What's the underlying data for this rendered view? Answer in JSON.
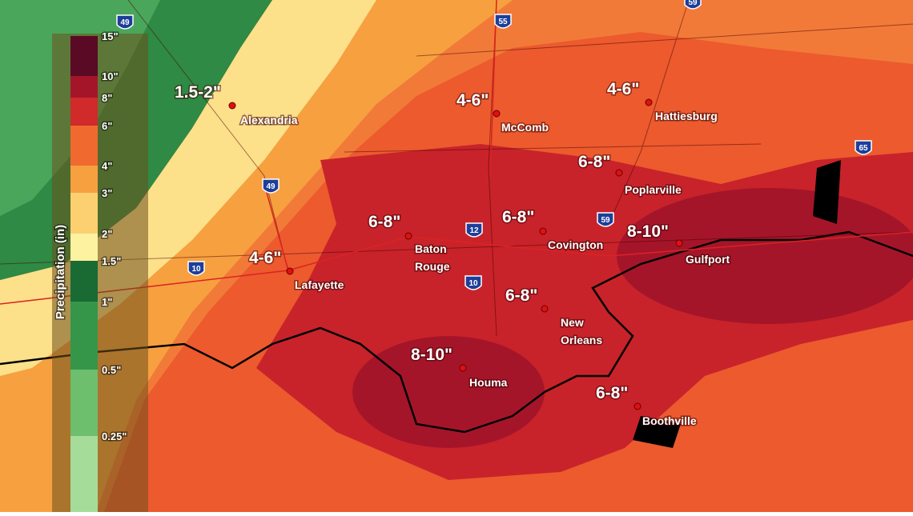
{
  "legend": {
    "title": "Precipitation (in)",
    "ticks": [
      "15\"",
      "10\"",
      "8\"",
      "6\"",
      "4\"",
      "3\"",
      "2\"",
      "1.5\"",
      "1\"",
      "0.5\"",
      "0.25\""
    ],
    "colors": [
      "#5a0a24",
      "#a5152a",
      "#d02a2a",
      "#f06a30",
      "#f7a040",
      "#fcd070",
      "#fdf2a0",
      "#1a6a34",
      "#35964a",
      "#6dbe6d",
      "#a5dc9a"
    ]
  },
  "cities": [
    {
      "name": [
        "Alexandria"
      ],
      "amount": "1.5-2\""
    },
    {
      "name": [
        "McComb"
      ],
      "amount": "4-6\""
    },
    {
      "name": [
        "Hattiesburg"
      ],
      "amount": "4-6\""
    },
    {
      "name": [
        "Poplarville"
      ],
      "amount": "6-8\""
    },
    {
      "name": [
        "Baton",
        "Rouge"
      ],
      "amount": "6-8\""
    },
    {
      "name": [
        "Covington"
      ],
      "amount": "6-8\""
    },
    {
      "name": [
        "Gulfport"
      ],
      "amount": "8-10\""
    },
    {
      "name": [
        "Lafayette"
      ],
      "amount": "4-6\""
    },
    {
      "name": [
        "New",
        "Orleans"
      ],
      "amount": "6-8\""
    },
    {
      "name": [
        "Houma"
      ],
      "amount": "8-10\""
    },
    {
      "name": [
        "Boothville"
      ],
      "amount": "6-8\""
    }
  ],
  "interstates": [
    "49",
    "55",
    "59",
    "49",
    "10",
    "12",
    "59",
    "10",
    "65"
  ]
}
